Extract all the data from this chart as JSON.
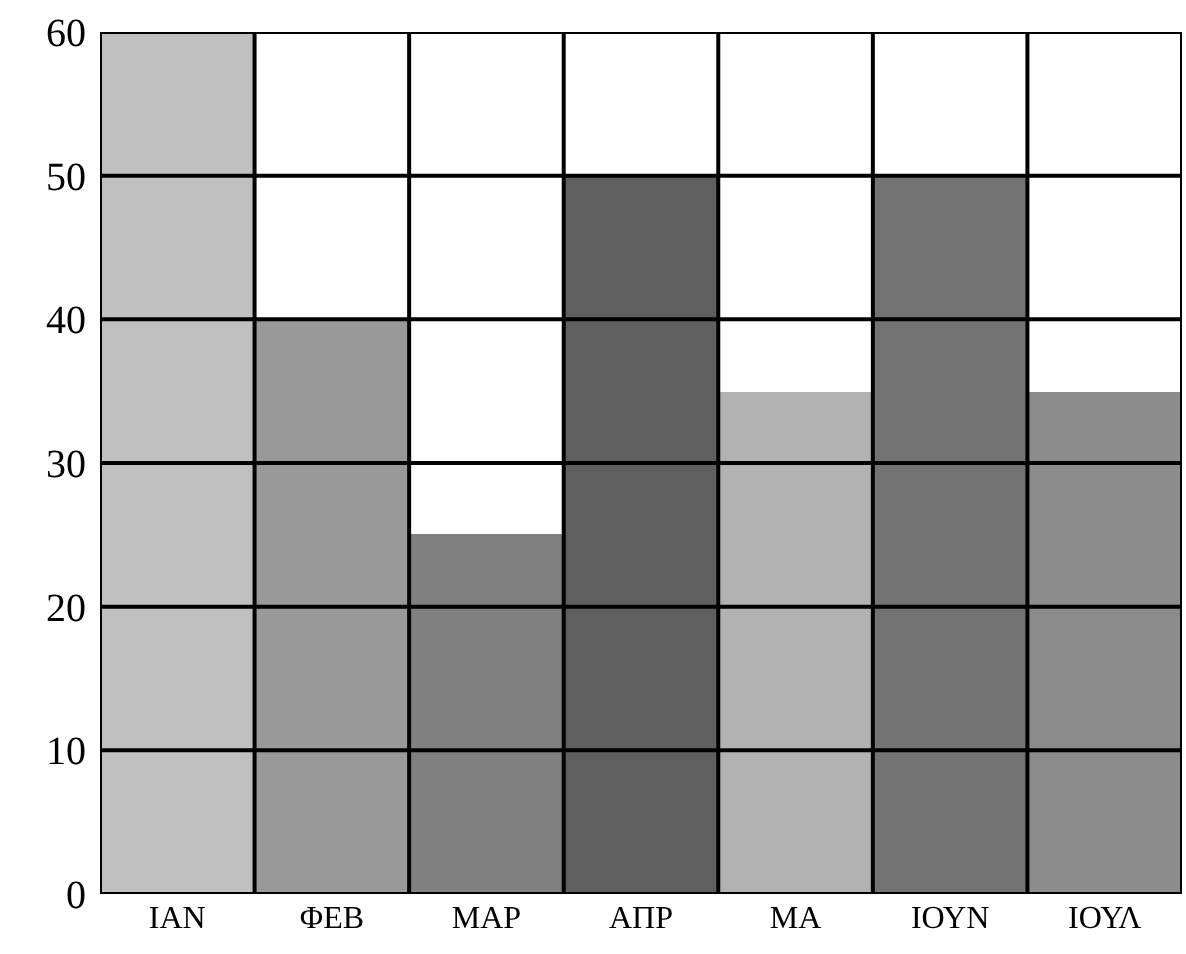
{
  "chart_data": {
    "type": "bar",
    "categories": [
      "ΙΑΝ",
      "ΦΕΒ",
      "ΜΑΡ",
      "ΑΠΡ",
      "ΜΑ",
      "ΙΟΥΝ",
      "ΙΟΥΛ"
    ],
    "values": [
      60,
      40,
      25,
      50,
      35,
      50,
      35
    ],
    "colors": [
      "#c0c0c0",
      "#999999",
      "#808080",
      "#5f5f5f",
      "#b2b2b2",
      "#737373",
      "#8c8c8c"
    ],
    "ylim": [
      0,
      60
    ],
    "yticks": [
      0,
      10,
      20,
      30,
      40,
      50,
      60
    ],
    "grid": true
  }
}
